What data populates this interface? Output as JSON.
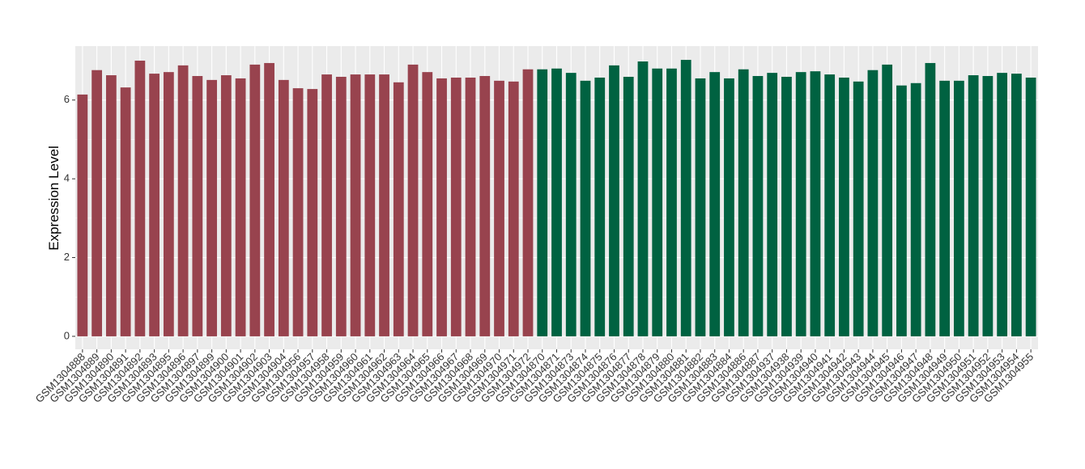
{
  "chart_data": {
    "type": "bar",
    "y_label": "Expression Level",
    "categories": [
      "GSM1304888",
      "GSM1304889",
      "GSM1304890",
      "GSM1304891",
      "GSM1304892",
      "GSM1304893",
      "GSM1304895",
      "GSM1304896",
      "GSM1304897",
      "GSM1304899",
      "GSM1304900",
      "GSM1304901",
      "GSM1304902",
      "GSM1304903",
      "GSM1304904",
      "GSM1304956",
      "GSM1304957",
      "GSM1304958",
      "GSM1304959",
      "GSM1304960",
      "GSM1304961",
      "GSM1304962",
      "GSM1304963",
      "GSM1304964",
      "GSM1304965",
      "GSM1304966",
      "GSM1304967",
      "GSM1304968",
      "GSM1304969",
      "GSM1304970",
      "GSM1304971",
      "GSM1304972",
      "GSM1304870",
      "GSM1304871",
      "GSM1304873",
      "GSM1304874",
      "GSM1304875",
      "GSM1304876",
      "GSM1304877",
      "GSM1304878",
      "GSM1304879",
      "GSM1304880",
      "GSM1304881",
      "GSM1304882",
      "GSM1304883",
      "GSM1304884",
      "GSM1304886",
      "GSM1304887",
      "GSM1304937",
      "GSM1304938",
      "GSM1304939",
      "GSM1304940",
      "GSM1304941",
      "GSM1304942",
      "GSM1304943",
      "GSM1304944",
      "GSM1304945",
      "GSM1304946",
      "GSM1304947",
      "GSM1304948",
      "GSM1304949",
      "GSM1304950",
      "GSM1304951",
      "GSM1304952",
      "GSM1304953",
      "GSM1304954",
      "GSM1304955"
    ],
    "values": [
      6.14,
      6.76,
      6.63,
      6.32,
      7.0,
      6.67,
      6.71,
      6.88,
      6.61,
      6.51,
      6.63,
      6.55,
      6.9,
      6.94,
      6.51,
      6.3,
      6.28,
      6.65,
      6.59,
      6.65,
      6.65,
      6.65,
      6.45,
      6.9,
      6.71,
      6.55,
      6.57,
      6.57,
      6.61,
      6.49,
      6.47,
      6.78,
      6.78,
      6.8,
      6.69,
      6.49,
      6.57,
      6.88,
      6.59,
      6.98,
      6.8,
      6.8,
      7.02,
      6.55,
      6.71,
      6.55,
      6.78,
      6.61,
      6.69,
      6.59,
      6.71,
      6.73,
      6.65,
      6.57,
      6.47,
      6.76,
      6.9,
      6.37,
      6.43,
      6.94,
      6.49,
      6.49,
      6.63,
      6.61,
      6.69,
      6.67,
      6.57
    ],
    "colors": [
      "#98434e",
      "#98434e",
      "#98434e",
      "#98434e",
      "#98434e",
      "#98434e",
      "#98434e",
      "#98434e",
      "#98434e",
      "#98434e",
      "#98434e",
      "#98434e",
      "#98434e",
      "#98434e",
      "#98434e",
      "#98434e",
      "#98434e",
      "#98434e",
      "#98434e",
      "#98434e",
      "#98434e",
      "#98434e",
      "#98434e",
      "#98434e",
      "#98434e",
      "#98434e",
      "#98434e",
      "#98434e",
      "#98434e",
      "#98434e",
      "#98434e",
      "#98434e",
      "#006241",
      "#006241",
      "#006241",
      "#006241",
      "#006241",
      "#006241",
      "#006241",
      "#006241",
      "#006241",
      "#006241",
      "#006241",
      "#006241",
      "#006241",
      "#006241",
      "#006241",
      "#006241",
      "#006241",
      "#006241",
      "#006241",
      "#006241",
      "#006241",
      "#006241",
      "#006241",
      "#006241",
      "#006241",
      "#006241",
      "#006241",
      "#006241",
      "#006241",
      "#006241",
      "#006241",
      "#006241",
      "#006241",
      "#006241",
      "#006241"
    ],
    "ylim": [
      -0.33,
      7.37
    ],
    "yticks": [
      0,
      2,
      4,
      6
    ],
    "grid": true
  }
}
